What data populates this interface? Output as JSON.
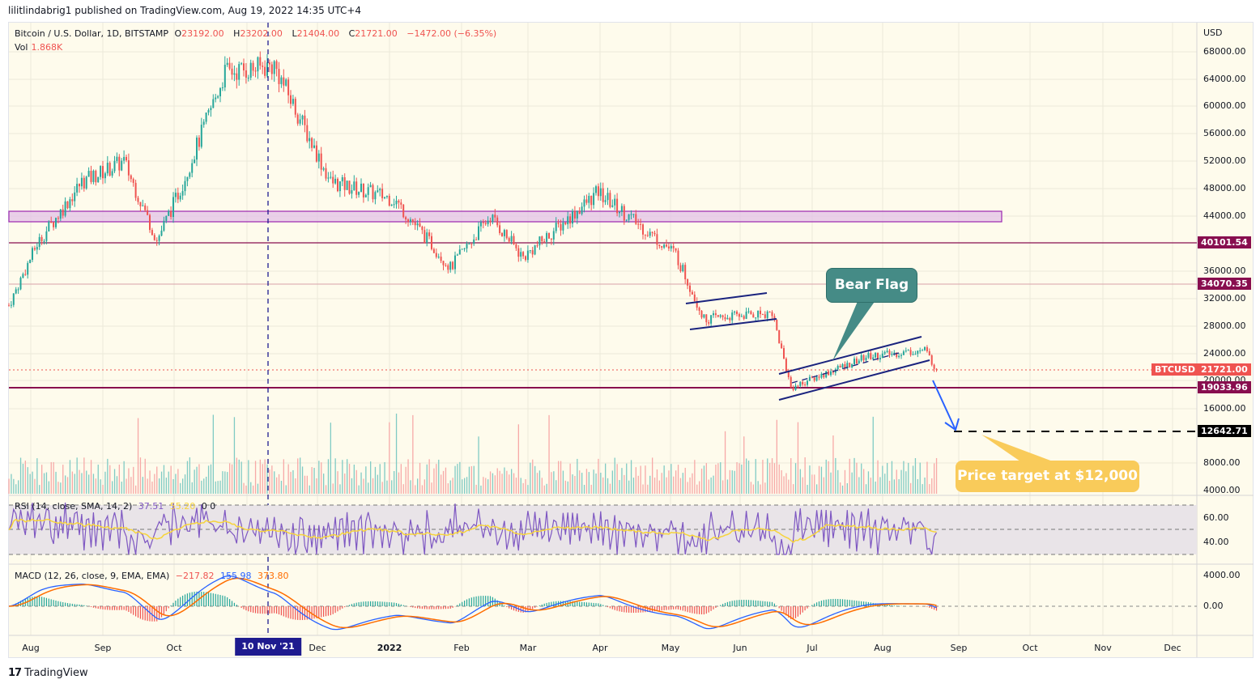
{
  "published": "lilitlindabrig1 published on TradingView.com, Aug 19, 2022 14:35 UTC+4",
  "legend": {
    "symbol": "Bitcoin / U.S. Dollar, 1D, BITSTAMP",
    "open_label": "O",
    "open": "23192.00",
    "high_label": "H",
    "high": "23202.00",
    "low_label": "L",
    "low": "21404.00",
    "close_label": "C",
    "close": "21721.00",
    "change": "−1472.00 (−6.35%)",
    "vol_label": "Vol",
    "vol": "1.868K"
  },
  "rsi_legend": {
    "label": "RSI (14, close, SMA, 14, 2)",
    "rsi": "37.51",
    "sma": "55.20",
    "extra": "0 0"
  },
  "macd_legend": {
    "label": "MACD (12, 26, close, 9, EMA, EMA)",
    "hist": "−217.82",
    "macd": "155.98",
    "signal": "373.80"
  },
  "price_axis": {
    "currency": "USD",
    "ticks": [
      "68000.00",
      "64000.00",
      "60000.00",
      "56000.00",
      "52000.00",
      "48000.00",
      "44000.00",
      "36000.00",
      "32000.00",
      "28000.00",
      "24000.00",
      "20000.00",
      "16000.00",
      "8000.00",
      "4000.00"
    ],
    "tags": [
      {
        "value": "40101.54",
        "color": "#880e4f"
      },
      {
        "value": "34070.35",
        "color": "#880e4f"
      },
      {
        "value": "21721.00",
        "color": "#ef5350",
        "symbol": "BTCUSD"
      },
      {
        "value": "19033.96",
        "color": "#880e4f"
      },
      {
        "value": "12642.71",
        "color": "#000000"
      }
    ]
  },
  "rsi_axis": {
    "ticks": [
      "60.00",
      "40.00"
    ]
  },
  "macd_axis": {
    "ticks": [
      "4000.00",
      "0.00"
    ]
  },
  "time_axis": {
    "labels": [
      "Aug",
      "Sep",
      "Oct",
      "Dec",
      "2022",
      "Feb",
      "Mar",
      "Apr",
      "May",
      "Jun",
      "Jul",
      "Aug",
      "Sep",
      "Oct",
      "Nov",
      "Dec"
    ],
    "highlight": "10 Nov '21"
  },
  "annotations": {
    "bear_flag": "Bear Flag",
    "price_target": "Price target at $12,000"
  },
  "colors": {
    "up": "#26a69a",
    "down": "#ef5350",
    "bg": "#fefbec",
    "resistance_zone": "#e1bee7",
    "level_line": "#880e4f",
    "channel": "#1a237e",
    "arrow": "#2962ff",
    "bear_flag_bg": "#458b86",
    "target_bg": "#f9cb5a"
  },
  "logo": "TradingView",
  "chart_data": {
    "type": "candlestick",
    "title": "Bitcoin / U.S. Dollar, 1D, BITSTAMP",
    "xlabel": "",
    "ylabel": "USD",
    "ylim": [
      4000,
      68000
    ],
    "x_ticks": [
      "Aug",
      "Sep",
      "Oct",
      "10 Nov '21",
      "Dec",
      "2022",
      "Feb",
      "Mar",
      "Apr",
      "May",
      "Jun",
      "Jul",
      "Aug",
      "Sep",
      "Oct",
      "Nov",
      "Dec"
    ],
    "y_ticks": [
      4000,
      8000,
      16000,
      20000,
      24000,
      28000,
      32000,
      36000,
      44000,
      48000,
      52000,
      56000,
      60000,
      64000,
      68000
    ],
    "approx_close_path": [
      {
        "date": "2021-07-20",
        "close": 31000
      },
      {
        "date": "2021-08-01",
        "close": 40000
      },
      {
        "date": "2021-08-20",
        "close": 49000
      },
      {
        "date": "2021-09-07",
        "close": 52000
      },
      {
        "date": "2021-09-21",
        "close": 40500
      },
      {
        "date": "2021-10-01",
        "close": 48000
      },
      {
        "date": "2021-10-20",
        "close": 65000
      },
      {
        "date": "2021-11-10",
        "close": 66000
      },
      {
        "date": "2021-12-04",
        "close": 49000
      },
      {
        "date": "2021-12-31",
        "close": 46500
      },
      {
        "date": "2022-01-24",
        "close": 36500
      },
      {
        "date": "2022-02-10",
        "close": 44000
      },
      {
        "date": "2022-02-24",
        "close": 38000
      },
      {
        "date": "2022-03-28",
        "close": 47500
      },
      {
        "date": "2022-04-30",
        "close": 38500
      },
      {
        "date": "2022-05-12",
        "close": 29000
      },
      {
        "date": "2022-06-10",
        "close": 30000
      },
      {
        "date": "2022-06-18",
        "close": 19000
      },
      {
        "date": "2022-07-20",
        "close": 23500
      },
      {
        "date": "2022-08-14",
        "close": 24500
      },
      {
        "date": "2022-08-19",
        "close": 21721
      }
    ],
    "last": {
      "open": 23192,
      "high": 23202,
      "low": 21404,
      "close": 21721,
      "change": -1472,
      "change_pct": -6.35,
      "volume": "1.868K"
    },
    "horizontal_levels": [
      40101.54,
      34070.35,
      19033.96,
      12642.71
    ],
    "resistance_zone": [
      43000,
      44600
    ],
    "annotations": [
      "Bear Flag",
      "Price target at $12,000"
    ],
    "indicators": {
      "rsi": {
        "params": "14, close, SMA, 14, 2",
        "value": 37.51,
        "sma": 55.2,
        "bands": [
          30,
          70
        ]
      },
      "macd": {
        "params": "12, 26, close, 9, EMA, EMA",
        "histogram": -217.82,
        "macd": 155.98,
        "signal": 373.8
      }
    }
  }
}
